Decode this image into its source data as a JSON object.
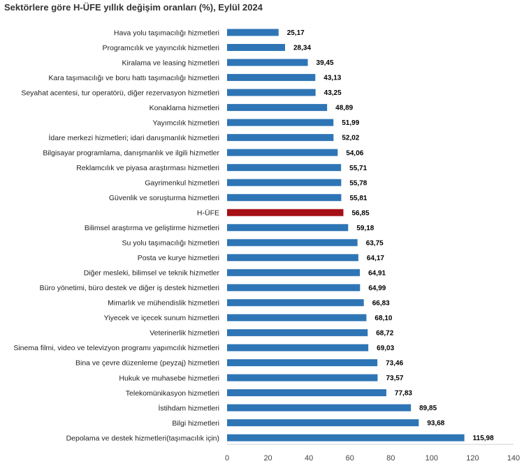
{
  "chart_data": {
    "type": "bar",
    "orientation": "horizontal",
    "title": "Sektörlere göre H-ÜFE yıllık değişim oranları (%), Eylül 2024",
    "xlim": [
      0,
      140
    ],
    "xticks": [
      0,
      20,
      40,
      60,
      80,
      100,
      120,
      140
    ],
    "grid": false,
    "bar_color": "#2e75b6",
    "highlight_color": "#a50f15",
    "highlight_category": "H-ÜFE",
    "categories": [
      "Hava yolu taşımacılığı hizmetleri",
      "Programcılık ve yayıncılık hizmetleri",
      "Kiralama ve leasing hizmetleri",
      "Kara taşımacılığı ve boru hattı taşımacılığı hizmetleri",
      "Seyahat acentesi, tur operatörü, diğer rezervasyon hizmetleri",
      "Konaklama hizmetleri",
      "Yayımcılık hizmetleri",
      "İdare merkezi hizmetleri; idari danışmanlık hizmetleri",
      "Bilgisayar programlama, danışmanlık ve ilgili hizmetler",
      "Reklamcılık ve piyasa araştırması hizmetleri",
      "Gayrimenkul hizmetleri",
      "Güvenlik ve soruşturma hizmetleri",
      "H-ÜFE",
      "Bilimsel araştırma ve geliştirme hizmetleri",
      "Su yolu taşımacılığı hizmetleri",
      "Posta ve kurye hizmetleri",
      "Diğer mesleki, bilimsel ve teknik hizmetler",
      "Büro yönetimi, büro destek ve diğer iş destek hizmetleri",
      "Mimarlık ve mühendislik hizmetleri",
      "Yiyecek ve içecek sunum hizmetleri",
      "Veterinerlik hizmetleri",
      "Sinema filmi, video ve televizyon programı yapımcılık hizmetleri",
      "Bina ve çevre düzenleme (peyzaj) hizmetleri",
      "Hukuk ve muhasebe hizmetleri",
      "Telekomünikasyon hizmetleri",
      "İstihdam hizmetleri",
      "Bilgi hizmetleri",
      "Depolama ve destek hizmetleri(taşımacılık için)"
    ],
    "values": [
      25.17,
      28.34,
      39.45,
      43.13,
      43.25,
      48.89,
      51.99,
      52.02,
      54.06,
      55.71,
      55.78,
      55.81,
      56.85,
      59.18,
      63.75,
      64.17,
      64.91,
      64.99,
      66.83,
      68.1,
      68.72,
      69.03,
      73.46,
      73.57,
      77.83,
      89.85,
      93.68,
      115.98
    ],
    "value_labels": [
      "25,17",
      "28,34",
      "39,45",
      "43,13",
      "43,25",
      "48,89",
      "51,99",
      "52,02",
      "54,06",
      "55,71",
      "55,78",
      "55,81",
      "56,85",
      "59,18",
      "63,75",
      "64,17",
      "64,91",
      "64,99",
      "66,83",
      "68,10",
      "68,72",
      "69,03",
      "73,46",
      "73,57",
      "77,83",
      "89,85",
      "93,68",
      "115,98"
    ]
  }
}
